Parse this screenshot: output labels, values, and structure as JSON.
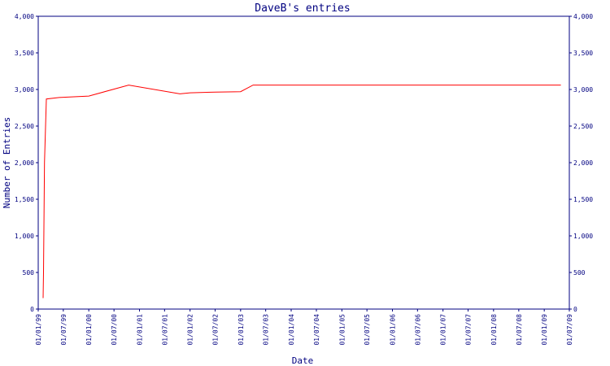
{
  "chart_data": {
    "type": "line",
    "title": "DaveB's entries",
    "xlabel": "Date",
    "ylabel": "Number of Entries",
    "ylim": [
      0,
      4000
    ],
    "y_ticks": [
      0,
      500,
      1000,
      1500,
      2000,
      2500,
      3000,
      3500,
      4000
    ],
    "y_tick_labels": [
      "0",
      "500",
      "1,000",
      "1,500",
      "2,000",
      "2,500",
      "3,000",
      "3,500",
      "4,000"
    ],
    "x_ticks": [
      "1999-01-01",
      "1999-07-01",
      "2000-01-01",
      "2000-07-01",
      "2001-01-01",
      "2001-07-01",
      "2002-01-01",
      "2002-07-01",
      "2003-01-01",
      "2003-07-01",
      "2004-01-01",
      "2004-07-01",
      "2005-01-01",
      "2005-07-01",
      "2006-01-01",
      "2006-07-01",
      "2007-01-01",
      "2007-07-01",
      "2008-01-01",
      "2008-07-01",
      "2009-01-01",
      "2009-07-01"
    ],
    "x_tick_labels": [
      "01/01/99",
      "01/07/99",
      "01/01/00",
      "01/07/00",
      "01/01/01",
      "01/07/01",
      "01/01/02",
      "01/07/02",
      "01/01/03",
      "01/07/03",
      "01/01/04",
      "01/07/04",
      "01/01/05",
      "01/07/05",
      "01/01/06",
      "01/07/06",
      "01/01/07",
      "01/07/07",
      "01/01/08",
      "01/07/08",
      "01/01/09",
      "01/07/09"
    ],
    "xlim": [
      "1999-01-01",
      "2009-07-01"
    ],
    "grid": false,
    "colors": {
      "line": "#ff0000",
      "axis": "#000080",
      "text": "#000080"
    },
    "series": [
      {
        "x": [
          "1999-02-05",
          "1999-02-08",
          "1999-02-15",
          "1999-03-01",
          "1999-06-01",
          "2000-01-01",
          "2000-10-15",
          "2001-10-20",
          "2002-01-01",
          "2002-07-01",
          "2003-01-01",
          "2003-04-01",
          "2004-01-01",
          "2006-01-01",
          "2008-01-01",
          "2009-05-01"
        ],
        "y": [
          150,
          500,
          2000,
          2870,
          2890,
          2910,
          3060,
          2940,
          2955,
          2965,
          2970,
          3060,
          3060,
          3060,
          3060,
          3060
        ]
      }
    ]
  }
}
